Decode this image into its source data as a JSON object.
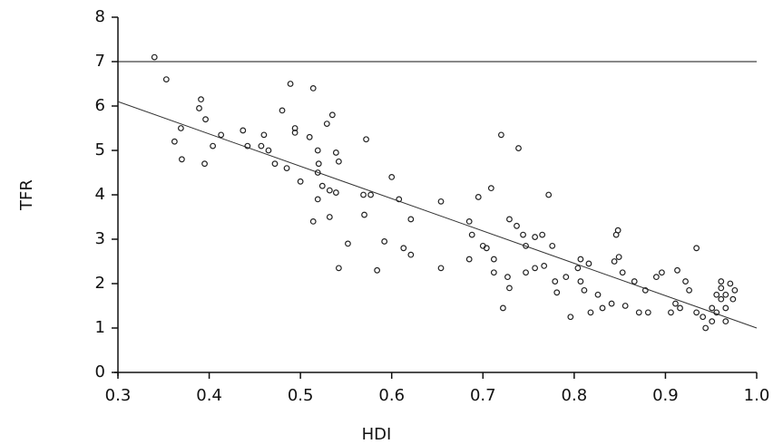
{
  "chart_data": {
    "type": "scatter",
    "x_label": "HDI",
    "y_label": "TFR",
    "xlim": [
      0.3,
      1.0
    ],
    "ylim": [
      0,
      8
    ],
    "xticks": [
      0.3,
      0.4,
      0.5,
      0.6,
      0.7,
      0.8,
      0.9,
      {
        "value": 1,
        "label": "1.0"
      }
    ],
    "yticks": [
      0,
      1,
      2,
      3,
      4,
      5,
      6,
      7,
      8
    ],
    "color": "#222222",
    "reference_line": 7,
    "fit_line": {
      "x": [
        0.3,
        1.0
      ],
      "y": [
        6.1,
        1.0
      ]
    },
    "x": [
      0.34,
      0.353,
      0.391,
      0.389,
      0.396,
      0.369,
      0.362,
      0.37,
      0.395,
      0.404,
      0.413,
      0.437,
      0.442,
      0.46,
      0.457,
      0.465,
      0.472,
      0.485,
      0.48,
      0.489,
      0.514,
      0.494,
      0.494,
      0.51,
      0.529,
      0.519,
      0.52,
      0.519,
      0.5,
      0.524,
      0.532,
      0.539,
      0.539,
      0.542,
      0.535,
      0.572,
      0.569,
      0.577,
      0.519,
      0.514,
      0.532,
      0.57,
      0.552,
      0.542,
      0.584,
      0.592,
      0.6,
      0.608,
      0.621,
      0.613,
      0.621,
      0.654,
      0.654,
      0.685,
      0.688,
      0.695,
      0.709,
      0.7,
      0.685,
      0.704,
      0.712,
      0.712,
      0.72,
      0.739,
      0.729,
      0.737,
      0.744,
      0.747,
      0.757,
      0.765,
      0.772,
      0.727,
      0.729,
      0.722,
      0.747,
      0.757,
      0.767,
      0.776,
      0.779,
      0.781,
      0.791,
      0.804,
      0.807,
      0.816,
      0.807,
      0.811,
      0.796,
      0.818,
      0.826,
      0.831,
      0.841,
      0.844,
      0.849,
      0.846,
      0.848,
      0.853,
      0.866,
      0.856,
      0.871,
      0.881,
      0.878,
      0.89,
      0.896,
      0.906,
      0.911,
      0.916,
      0.913,
      0.922,
      0.926,
      0.934,
      0.934,
      0.941,
      0.944,
      0.951,
      0.956,
      0.961,
      0.966,
      0.971,
      0.976,
      0.974,
      0.966,
      0.956,
      0.961,
      0.951,
      0.966,
      0.961
    ],
    "values": [
      7.1,
      6.6,
      6.15,
      5.95,
      5.7,
      5.5,
      5.2,
      4.8,
      4.7,
      5.1,
      5.35,
      5.45,
      5.1,
      5.35,
      5.1,
      5.0,
      4.7,
      4.6,
      5.9,
      6.5,
      6.4,
      5.5,
      5.4,
      5.3,
      5.6,
      5.0,
      4.7,
      4.5,
      4.3,
      4.2,
      4.1,
      4.05,
      4.95,
      4.75,
      5.8,
      5.25,
      4.0,
      4.0,
      3.9,
      3.4,
      3.5,
      3.55,
      2.9,
      2.35,
      2.3,
      2.95,
      4.4,
      3.9,
      3.45,
      2.8,
      2.65,
      3.85,
      2.35,
      3.4,
      3.1,
      3.95,
      4.15,
      2.85,
      2.55,
      2.8,
      2.55,
      2.25,
      5.35,
      5.05,
      3.45,
      3.3,
      3.1,
      2.85,
      3.05,
      3.1,
      4.0,
      2.15,
      1.9,
      1.45,
      2.25,
      2.35,
      2.4,
      2.85,
      2.05,
      1.8,
      2.15,
      2.35,
      2.55,
      2.45,
      2.05,
      1.85,
      1.25,
      1.35,
      1.75,
      1.45,
      1.55,
      2.5,
      2.6,
      3.1,
      3.2,
      2.25,
      2.05,
      1.5,
      1.35,
      1.35,
      1.85,
      2.15,
      2.25,
      1.35,
      1.55,
      1.45,
      2.3,
      2.05,
      1.85,
      2.8,
      1.35,
      1.25,
      1.0,
      1.45,
      1.35,
      1.65,
      1.75,
      2.0,
      1.85,
      1.65,
      1.45,
      1.75,
      1.9,
      1.15,
      1.15,
      2.05
    ]
  }
}
